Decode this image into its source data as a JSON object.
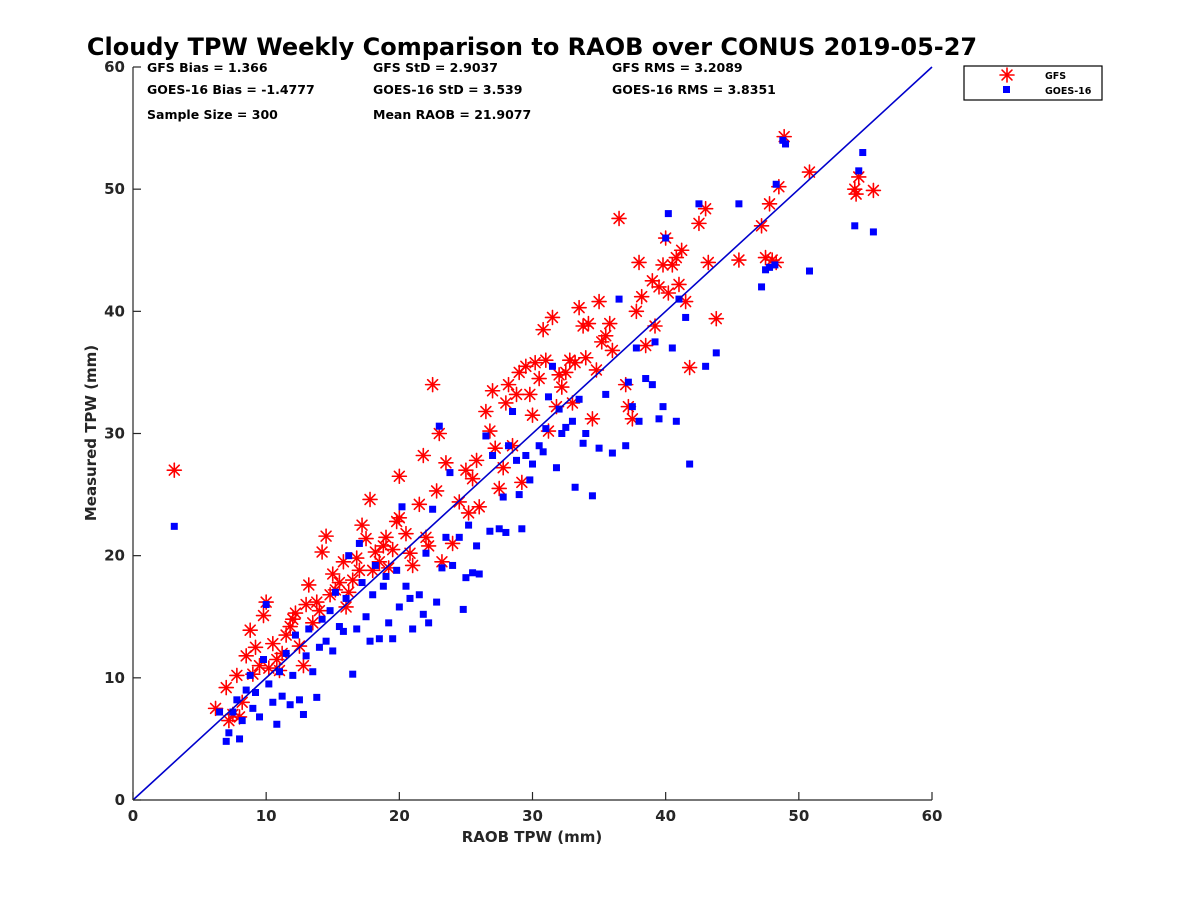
{
  "chart_data": {
    "type": "scatter",
    "title": "Cloudy TPW Weekly Comparison to RAOB over CONUS 2019-05-27",
    "xlabel": "RAOB TPW (mm)",
    "ylabel": "Measured TPW (mm)",
    "xlim": [
      0,
      60
    ],
    "ylim": [
      0,
      60
    ],
    "xticks": [
      "0",
      "10",
      "20",
      "30",
      "40",
      "50",
      "60"
    ],
    "yticks": [
      "0",
      "10",
      "20",
      "30",
      "40",
      "50",
      "60"
    ],
    "grid": false,
    "legend_placement": "outside-top-right",
    "reference_line": {
      "x": [
        0,
        60
      ],
      "y": [
        0,
        60
      ],
      "color": "#0000cc"
    },
    "stats": [
      [
        "GFS Bias = 1.366",
        "GFS StD = 2.9037",
        "GFS RMS = 3.2089"
      ],
      [
        "GOES-16 Bias = -1.4777",
        "GOES-16 StD = 3.539",
        "GOES-16 RMS = 3.8351"
      ],
      [
        "Sample Size = 300",
        "Mean RAOB = 21.9077",
        ""
      ]
    ],
    "series": [
      {
        "name": "GFS",
        "marker": "asterisk",
        "color": "#ff0000",
        "points": [
          [
            3.1,
            27.0
          ],
          [
            6.2,
            7.5
          ],
          [
            7.0,
            9.2
          ],
          [
            7.2,
            6.5
          ],
          [
            7.5,
            7.0
          ],
          [
            7.8,
            10.2
          ],
          [
            8.0,
            6.8
          ],
          [
            8.2,
            8.0
          ],
          [
            8.5,
            11.8
          ],
          [
            8.8,
            13.9
          ],
          [
            9.0,
            10.3
          ],
          [
            9.2,
            12.5
          ],
          [
            9.5,
            11.0
          ],
          [
            9.8,
            15.1
          ],
          [
            10.0,
            16.2
          ],
          [
            10.2,
            10.8
          ],
          [
            10.5,
            12.8
          ],
          [
            10.8,
            11.5
          ],
          [
            11.0,
            10.6
          ],
          [
            11.2,
            12.0
          ],
          [
            11.5,
            13.5
          ],
          [
            11.8,
            14.2
          ],
          [
            12.0,
            14.8
          ],
          [
            12.2,
            15.3
          ],
          [
            12.5,
            12.6
          ],
          [
            12.8,
            11.0
          ],
          [
            13.0,
            16.0
          ],
          [
            13.2,
            17.6
          ],
          [
            13.5,
            14.5
          ],
          [
            13.8,
            16.2
          ],
          [
            14.0,
            15.5
          ],
          [
            14.2,
            20.3
          ],
          [
            14.5,
            21.6
          ],
          [
            14.8,
            16.8
          ],
          [
            15.0,
            18.5
          ],
          [
            15.2,
            17.2
          ],
          [
            15.5,
            17.8
          ],
          [
            15.8,
            19.5
          ],
          [
            16.0,
            15.8
          ],
          [
            16.2,
            17.0
          ],
          [
            16.5,
            18.0
          ],
          [
            16.8,
            19.8
          ],
          [
            17.0,
            18.8
          ],
          [
            17.2,
            22.5
          ],
          [
            17.5,
            21.4
          ],
          [
            17.8,
            24.6
          ],
          [
            18.0,
            18.8
          ],
          [
            18.2,
            20.3
          ],
          [
            18.5,
            19.5
          ],
          [
            18.8,
            20.8
          ],
          [
            19.0,
            21.5
          ],
          [
            19.2,
            19.0
          ],
          [
            19.5,
            20.5
          ],
          [
            19.8,
            22.8
          ],
          [
            20.0,
            23.1
          ],
          [
            20.0,
            26.5
          ],
          [
            20.5,
            21.8
          ],
          [
            20.8,
            20.2
          ],
          [
            21.0,
            19.2
          ],
          [
            21.5,
            24.2
          ],
          [
            21.8,
            28.2
          ],
          [
            22.0,
            21.5
          ],
          [
            22.2,
            20.8
          ],
          [
            22.5,
            34.0
          ],
          [
            22.8,
            25.3
          ],
          [
            23.0,
            30.0
          ],
          [
            23.2,
            19.5
          ],
          [
            23.5,
            27.6
          ],
          [
            24.0,
            21.0
          ],
          [
            24.5,
            24.4
          ],
          [
            25.0,
            27.0
          ],
          [
            25.2,
            23.5
          ],
          [
            25.5,
            26.3
          ],
          [
            25.8,
            27.8
          ],
          [
            26.0,
            24.0
          ],
          [
            26.5,
            31.8
          ],
          [
            26.8,
            30.2
          ],
          [
            27.0,
            33.5
          ],
          [
            27.2,
            28.8
          ],
          [
            27.5,
            25.5
          ],
          [
            27.8,
            27.2
          ],
          [
            28.0,
            32.5
          ],
          [
            28.2,
            34.0
          ],
          [
            28.5,
            29.0
          ],
          [
            28.8,
            33.2
          ],
          [
            29.0,
            35.0
          ],
          [
            29.2,
            26.0
          ],
          [
            29.5,
            35.5
          ],
          [
            29.8,
            33.2
          ],
          [
            30.0,
            31.5
          ],
          [
            30.2,
            35.8
          ],
          [
            30.5,
            34.5
          ],
          [
            30.8,
            38.5
          ],
          [
            31.0,
            36.0
          ],
          [
            31.2,
            30.2
          ],
          [
            31.5,
            39.5
          ],
          [
            31.8,
            32.2
          ],
          [
            32.0,
            34.8
          ],
          [
            32.2,
            33.8
          ],
          [
            32.5,
            35.0
          ],
          [
            32.8,
            36.0
          ],
          [
            33.0,
            32.5
          ],
          [
            33.2,
            35.8
          ],
          [
            33.5,
            40.3
          ],
          [
            33.8,
            38.8
          ],
          [
            34.0,
            36.2
          ],
          [
            34.2,
            39.0
          ],
          [
            34.5,
            31.2
          ],
          [
            34.8,
            35.2
          ],
          [
            35.0,
            40.8
          ],
          [
            35.2,
            37.5
          ],
          [
            35.5,
            38.0
          ],
          [
            35.8,
            39.0
          ],
          [
            36.0,
            36.8
          ],
          [
            36.5,
            47.6
          ],
          [
            37.0,
            34.0
          ],
          [
            37.2,
            32.2
          ],
          [
            37.5,
            31.2
          ],
          [
            37.8,
            40.0
          ],
          [
            38.0,
            44.0
          ],
          [
            38.2,
            41.2
          ],
          [
            38.5,
            37.2
          ],
          [
            39.0,
            42.5
          ],
          [
            39.2,
            38.8
          ],
          [
            39.5,
            42.0
          ],
          [
            39.8,
            43.8
          ],
          [
            40.0,
            46.0
          ],
          [
            40.2,
            41.5
          ],
          [
            40.5,
            43.8
          ],
          [
            40.8,
            44.4
          ],
          [
            41.0,
            42.2
          ],
          [
            41.2,
            45.0
          ],
          [
            41.5,
            40.8
          ],
          [
            41.8,
            35.4
          ],
          [
            42.5,
            47.2
          ],
          [
            43.0,
            48.4
          ],
          [
            43.2,
            44.0
          ],
          [
            43.8,
            39.4
          ],
          [
            45.5,
            44.2
          ],
          [
            47.2,
            47.0
          ],
          [
            47.5,
            44.4
          ],
          [
            47.8,
            48.8
          ],
          [
            48.0,
            44.2
          ],
          [
            48.3,
            44.0
          ],
          [
            48.5,
            50.2
          ],
          [
            48.9,
            54.3
          ],
          [
            50.8,
            51.4
          ],
          [
            54.2,
            50.0
          ],
          [
            54.3,
            49.6
          ],
          [
            54.5,
            51.0
          ],
          [
            55.6,
            49.9
          ]
        ]
      },
      {
        "name": "GOES-16",
        "marker": "square",
        "color": "#0000ff",
        "points": [
          [
            3.1,
            22.4
          ],
          [
            6.5,
            7.2
          ],
          [
            7.0,
            4.8
          ],
          [
            7.2,
            5.5
          ],
          [
            7.5,
            7.2
          ],
          [
            7.8,
            8.2
          ],
          [
            8.0,
            5.0
          ],
          [
            8.2,
            6.5
          ],
          [
            8.5,
            9.0
          ],
          [
            8.8,
            10.2
          ],
          [
            9.0,
            7.5
          ],
          [
            9.2,
            8.8
          ],
          [
            9.5,
            6.8
          ],
          [
            9.8,
            11.5
          ],
          [
            10.0,
            16.0
          ],
          [
            10.2,
            9.5
          ],
          [
            10.5,
            8.0
          ],
          [
            10.8,
            6.2
          ],
          [
            11.0,
            10.5
          ],
          [
            11.2,
            8.5
          ],
          [
            11.5,
            12.0
          ],
          [
            11.8,
            7.8
          ],
          [
            12.0,
            10.2
          ],
          [
            12.2,
            13.5
          ],
          [
            12.5,
            8.2
          ],
          [
            12.8,
            7.0
          ],
          [
            13.0,
            11.8
          ],
          [
            13.2,
            14.0
          ],
          [
            13.5,
            10.5
          ],
          [
            13.8,
            8.4
          ],
          [
            14.0,
            12.5
          ],
          [
            14.2,
            14.8
          ],
          [
            14.5,
            13.0
          ],
          [
            14.8,
            15.5
          ],
          [
            15.0,
            12.2
          ],
          [
            15.2,
            17.0
          ],
          [
            15.5,
            14.2
          ],
          [
            15.8,
            13.8
          ],
          [
            16.0,
            16.5
          ],
          [
            16.2,
            20.0
          ],
          [
            16.5,
            10.3
          ],
          [
            16.8,
            14.0
          ],
          [
            17.0,
            21.0
          ],
          [
            17.2,
            17.8
          ],
          [
            17.5,
            15.0
          ],
          [
            17.8,
            13.0
          ],
          [
            18.0,
            16.8
          ],
          [
            18.2,
            19.2
          ],
          [
            18.5,
            13.2
          ],
          [
            18.8,
            17.5
          ],
          [
            19.0,
            18.3
          ],
          [
            19.2,
            14.5
          ],
          [
            19.5,
            13.2
          ],
          [
            19.8,
            18.8
          ],
          [
            20.0,
            15.8
          ],
          [
            20.2,
            24.0
          ],
          [
            20.5,
            17.5
          ],
          [
            20.8,
            16.5
          ],
          [
            21.0,
            14.0
          ],
          [
            21.5,
            16.8
          ],
          [
            21.8,
            15.2
          ],
          [
            22.0,
            20.2
          ],
          [
            22.2,
            14.5
          ],
          [
            22.5,
            23.8
          ],
          [
            22.8,
            16.2
          ],
          [
            23.0,
            30.6
          ],
          [
            23.2,
            19.0
          ],
          [
            23.5,
            21.5
          ],
          [
            23.8,
            26.8
          ],
          [
            24.0,
            19.2
          ],
          [
            24.5,
            21.5
          ],
          [
            24.8,
            15.6
          ],
          [
            25.0,
            18.2
          ],
          [
            25.2,
            22.5
          ],
          [
            25.5,
            18.6
          ],
          [
            25.8,
            20.8
          ],
          [
            26.0,
            18.5
          ],
          [
            26.5,
            29.8
          ],
          [
            26.8,
            22.0
          ],
          [
            27.0,
            28.2
          ],
          [
            27.5,
            22.2
          ],
          [
            27.8,
            24.8
          ],
          [
            28.0,
            21.9
          ],
          [
            28.2,
            29.0
          ],
          [
            28.5,
            31.8
          ],
          [
            28.8,
            27.8
          ],
          [
            29.0,
            25.0
          ],
          [
            29.2,
            22.2
          ],
          [
            29.5,
            28.2
          ],
          [
            29.8,
            26.2
          ],
          [
            30.0,
            27.5
          ],
          [
            30.5,
            29.0
          ],
          [
            30.8,
            28.5
          ],
          [
            31.0,
            30.4
          ],
          [
            31.2,
            33.0
          ],
          [
            31.5,
            35.5
          ],
          [
            31.8,
            27.2
          ],
          [
            32.0,
            32.0
          ],
          [
            32.2,
            30.0
          ],
          [
            32.5,
            30.5
          ],
          [
            33.0,
            31.0
          ],
          [
            33.2,
            25.6
          ],
          [
            33.5,
            32.8
          ],
          [
            33.8,
            29.2
          ],
          [
            34.0,
            30.0
          ],
          [
            34.5,
            24.9
          ],
          [
            35.0,
            28.8
          ],
          [
            35.5,
            33.2
          ],
          [
            36.0,
            28.4
          ],
          [
            36.5,
            41.0
          ],
          [
            37.0,
            29.0
          ],
          [
            37.2,
            34.2
          ],
          [
            37.5,
            32.2
          ],
          [
            37.8,
            37.0
          ],
          [
            38.0,
            31.0
          ],
          [
            38.5,
            34.5
          ],
          [
            39.0,
            34.0
          ],
          [
            39.2,
            37.5
          ],
          [
            39.5,
            31.2
          ],
          [
            39.8,
            32.2
          ],
          [
            40.0,
            46.0
          ],
          [
            40.2,
            48.0
          ],
          [
            40.5,
            37.0
          ],
          [
            40.8,
            31.0
          ],
          [
            41.0,
            41.0
          ],
          [
            41.5,
            39.5
          ],
          [
            41.8,
            27.5
          ],
          [
            42.5,
            48.8
          ],
          [
            43.0,
            35.5
          ],
          [
            43.8,
            36.6
          ],
          [
            45.5,
            48.8
          ],
          [
            47.2,
            42.0
          ],
          [
            47.5,
            43.4
          ],
          [
            47.8,
            43.6
          ],
          [
            48.2,
            43.8
          ],
          [
            48.3,
            50.4
          ],
          [
            48.8,
            54.0
          ],
          [
            49.0,
            53.7
          ],
          [
            50.8,
            43.3
          ],
          [
            54.2,
            47.0
          ],
          [
            54.5,
            51.5
          ],
          [
            54.8,
            53.0
          ],
          [
            55.6,
            46.5
          ]
        ]
      }
    ]
  }
}
